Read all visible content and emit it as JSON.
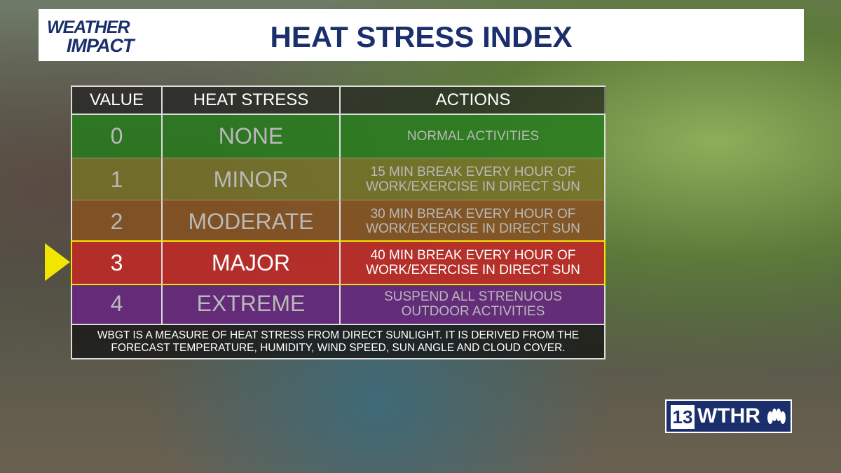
{
  "header": {
    "logo_top": "WEATHER",
    "logo_bottom": "IMPACT",
    "title": "HEAT STRESS INDEX"
  },
  "table": {
    "columns": [
      "VALUE",
      "HEAT STRESS",
      "ACTIONS"
    ],
    "rows": [
      [
        0,
        "NONE",
        "NORMAL ACTIVITIES"
      ],
      [
        1,
        "MINOR",
        "15 MIN BREAK EVERY HOUR OF WORK/EXERCISE IN DIRECT SUN"
      ],
      [
        2,
        "MODERATE",
        "30 MIN BREAK EVERY HOUR OF WORK/EXERCISE IN DIRECT SUN"
      ],
      [
        3,
        "MAJOR",
        "40 MIN BREAK EVERY HOUR OF WORK/EXERCISE IN DIRECT SUN"
      ],
      [
        4,
        "EXTREME",
        "SUSPEND ALL STRENUOUS OUTDOOR ACTIVITIES"
      ]
    ],
    "footnote": "WBGT IS A MEASURE OF HEAT STRESS FROM DIRECT SUNLIGHT.  IT IS DERIVED FROM THE FORECAST TEMPERATURE, HUMIDITY, WIND SPEED, SUN ANGLE AND CLOUD COVER."
  },
  "brand": {
    "channel": "13",
    "name": "WTHR"
  }
}
